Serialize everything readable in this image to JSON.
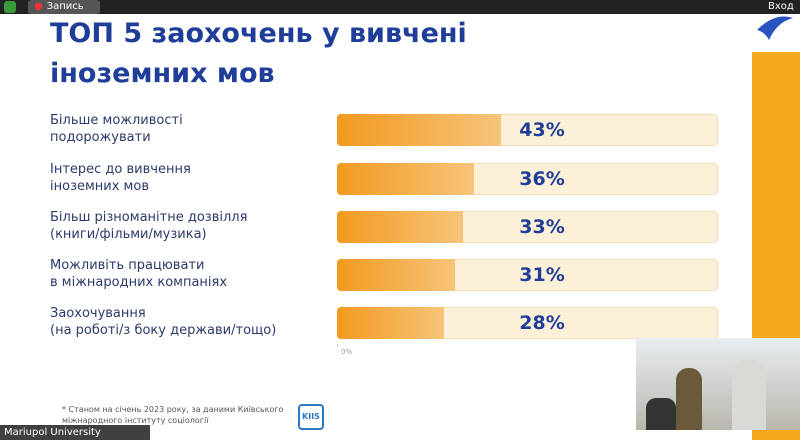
{
  "ui": {
    "recording": "Запись",
    "login": "Вход",
    "participant": "Mariupol University"
  },
  "chart_data": {
    "type": "bar",
    "orientation": "horizontal",
    "title": "ТОП 5 заохочень у вивчені\nіноземних мов",
    "categories": [
      "Більше можливості\nподорожувати",
      "Інтерес до вивчення\nіноземних мов",
      "Більш різноманітне дозвілля\n(книги/фільми/музика)",
      "Можливіть працювати\nв міжнародних компаніях",
      "Заохочування\n(на роботі/з боку держави/тощо)"
    ],
    "values": [
      43,
      36,
      33,
      31,
      28
    ],
    "value_labels": [
      "43%",
      "36%",
      "33%",
      "31%",
      "28%"
    ],
    "color": "#f29a1f",
    "xlim": [
      0,
      100
    ],
    "xticks": [
      {
        "value": 0,
        "label": "0%"
      }
    ]
  },
  "footnote": "* Станом на січень 2023 року, за даними Київського\nміжнародного інституту соціології",
  "logo": "KIIS"
}
